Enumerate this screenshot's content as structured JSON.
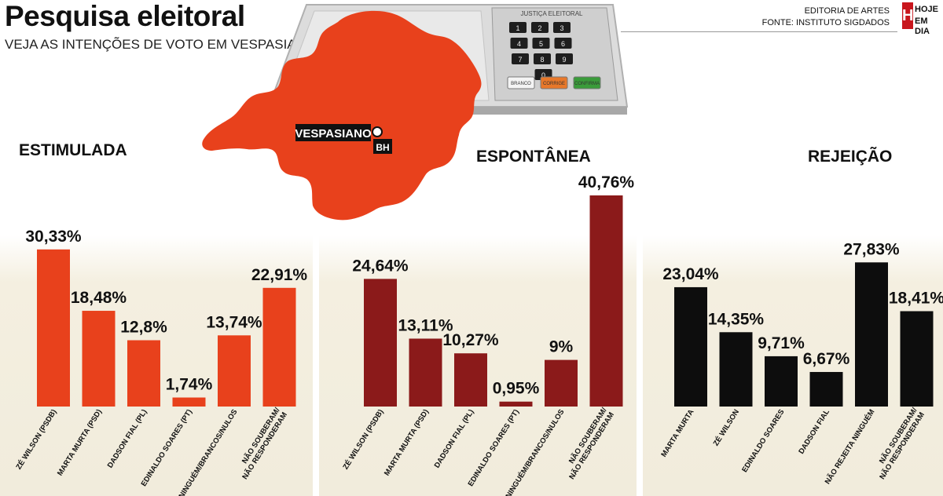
{
  "header": {
    "title": "Pesquisa eleitoral",
    "subtitle": "VEJA AS INTENÇÕES DE VOTO EM VESPASIANO",
    "credit_line1": "EDITORIA DE ARTES",
    "credit_line2": "FONTE: INSTITUTO SIGDADOS",
    "logo_h": "H",
    "logo_line1": "HOJE",
    "logo_line2": "EM DIA"
  },
  "map": {
    "city_label": "VESPASIANO",
    "bh_label": "BH",
    "urn_header": "JUSTIÇA ELEITORAL",
    "urn_keys": [
      "1",
      "2",
      "3",
      "4",
      "5",
      "6",
      "7",
      "8",
      "9",
      "0"
    ],
    "urn_buttons": [
      "BRANCO",
      "CORRIGE",
      "CONFIRMA"
    ]
  },
  "colors": {
    "estimulada": "#e8411c",
    "espontanea": "#8b1a1a",
    "rejeicao": "#0d0d0d",
    "map": "#e8411c"
  },
  "chart_data": [
    {
      "type": "bar",
      "title": "ESTIMULADA",
      "categories": [
        "ZÉ WILSON (PSDB)",
        "MARTA MURTA (PSD)",
        "DADSON FIAL (PL)",
        "EDINALDO SOARES (PT)",
        "NINGUÉM/BRANCOS/NULOS",
        "NÃO SOUBERAM/ NÃO RESPONDERAM"
      ],
      "values": [
        30.33,
        18.48,
        12.8,
        1.74,
        13.74,
        22.91
      ],
      "value_labels": [
        "30,33%",
        "18,48%",
        "12,8%",
        "1,74%",
        "13,74%",
        "22,91%"
      ]
    },
    {
      "type": "bar",
      "title": "ESPONTÂNEA",
      "categories": [
        "ZÉ WILSON (PSDB)",
        "MARTA MURTA (PSD)",
        "DADSON FIAL (PL)",
        "EDINALDO SOARES (PT)",
        "NINGUÉM/BRANCOS/NULOS",
        "NÃO SOUBERAM/ NÃO RESPONDERAM"
      ],
      "values": [
        24.64,
        13.11,
        10.27,
        0.95,
        9,
        40.76
      ],
      "value_labels": [
        "24,64%",
        "13,11%",
        "10,27%",
        "0,95%",
        "9%",
        "40,76%"
      ]
    },
    {
      "type": "bar",
      "title": "REJEIÇÃO",
      "categories": [
        "MARTA MURTA",
        "ZÉ WILSON",
        "EDINALDO SOARES",
        "DADSON FIAL",
        "NÃO REJEITA NINGUÉM",
        "NÃO SOUBERAM/ NÃO RESPONDERAM"
      ],
      "values": [
        23.04,
        14.35,
        9.71,
        6.67,
        27.83,
        18.41
      ],
      "value_labels": [
        "23,04%",
        "14,35%",
        "9,71%",
        "6,67%",
        "27,83%",
        "18,41%"
      ]
    }
  ]
}
